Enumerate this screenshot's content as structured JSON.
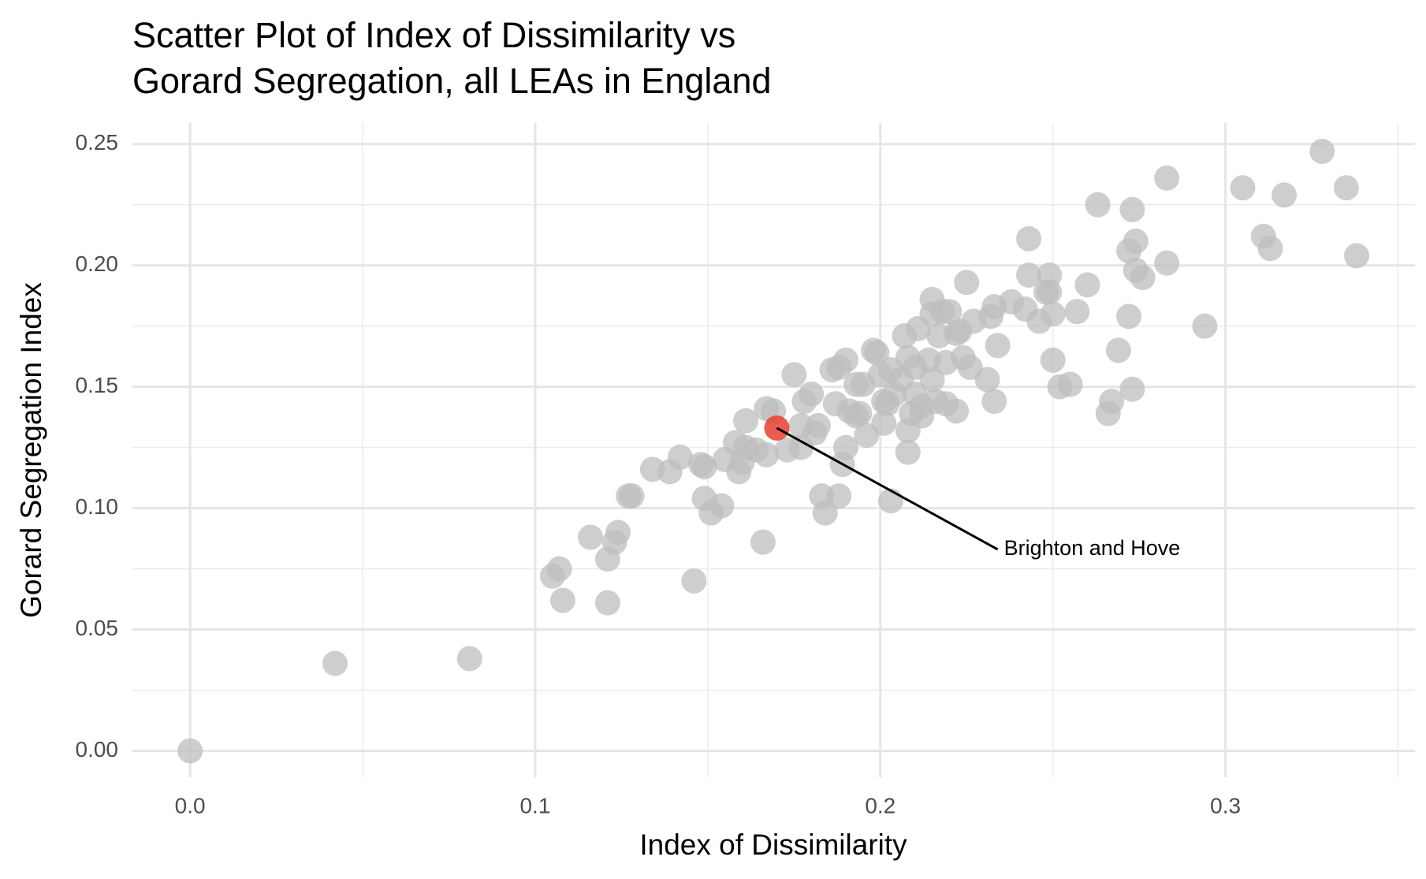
{
  "chart_data": {
    "type": "scatter",
    "title": [
      "Scatter Plot of Index of Dissimilarity vs",
      "Gorard Segregation, all LEAs in England"
    ],
    "x_label": "Index of Dissimilarity",
    "y_label": "Gorard Segregation Index",
    "x": [
      0,
      0.042,
      0.081,
      0.105,
      0.107,
      0.108,
      0.116,
      0.121,
      0.121,
      0.123,
      0.124,
      0.127,
      0.128,
      0.134,
      0.139,
      0.142,
      0.146,
      0.148,
      0.149,
      0.149,
      0.151,
      0.154,
      0.155,
      0.158,
      0.159,
      0.16,
      0.161,
      0.161,
      0.164,
      0.166,
      0.167,
      0.167,
      0.169,
      0.17,
      0.173,
      0.175,
      0.177,
      0.177,
      0.178,
      0.18,
      0.181,
      0.182,
      0.183,
      0.184,
      0.186,
      0.187,
      0.188,
      0.189,
      0.188,
      0.19,
      0.19,
      0.191,
      0.193,
      0.193,
      0.194,
      0.195,
      0.196,
      0.198,
      0.199,
      0.2,
      0.201,
      0.201,
      0.202,
      0.203,
      0.203,
      0.204,
      0.206,
      0.207,
      0.208,
      0.208,
      0.208,
      0.209,
      0.21,
      0.21,
      0.211,
      0.212,
      0.212,
      0.214,
      0.215,
      0.215,
      0.215,
      0.216,
      0.217,
      0.218,
      0.219,
      0.219,
      0.22,
      0.222,
      0.222,
      0.223,
      0.224,
      0.225,
      0.226,
      0.227,
      0.231,
      0.232,
      0.233,
      0.233,
      0.234,
      0.238,
      0.242,
      0.243,
      0.243,
      0.246,
      0.248,
      0.249,
      0.249,
      0.25,
      0.25,
      0.252,
      0.255,
      0.257,
      0.26,
      0.263,
      0.266,
      0.267,
      0.269,
      0.272,
      0.272,
      0.273,
      0.273,
      0.274,
      0.274,
      0.276,
      0.283,
      0.283,
      0.294,
      0.305,
      0.311,
      0.313,
      0.317,
      0.328,
      0.335,
      0.338
    ],
    "y": [
      0,
      0.036,
      0.038,
      0.072,
      0.075,
      0.062,
      0.088,
      0.061,
      0.079,
      0.086,
      0.09,
      0.105,
      0.105,
      0.116,
      0.115,
      0.121,
      0.07,
      0.118,
      0.117,
      0.104,
      0.098,
      0.101,
      0.12,
      0.127,
      0.115,
      0.119,
      0.136,
      0.125,
      0.124,
      0.086,
      0.122,
      0.141,
      0.14,
      0.133,
      0.124,
      0.155,
      0.125,
      0.134,
      0.144,
      0.147,
      0.131,
      0.134,
      0.105,
      0.098,
      0.157,
      0.143,
      0.105,
      0.118,
      0.158,
      0.161,
      0.125,
      0.14,
      0.138,
      0.151,
      0.139,
      0.151,
      0.13,
      0.165,
      0.164,
      0.155,
      0.135,
      0.144,
      0.143,
      0.103,
      0.157,
      0.147,
      0.153,
      0.171,
      0.162,
      0.132,
      0.123,
      0.139,
      0.147,
      0.158,
      0.174,
      0.142,
      0.138,
      0.161,
      0.186,
      0.18,
      0.153,
      0.144,
      0.171,
      0.181,
      0.16,
      0.143,
      0.181,
      0.14,
      0.172,
      0.173,
      0.162,
      0.193,
      0.158,
      0.177,
      0.153,
      0.179,
      0.183,
      0.144,
      0.167,
      0.185,
      0.182,
      0.196,
      0.211,
      0.177,
      0.189,
      0.196,
      0.189,
      0.18,
      0.161,
      0.15,
      0.151,
      0.181,
      0.192,
      0.225,
      0.139,
      0.144,
      0.165,
      0.206,
      0.179,
      0.149,
      0.223,
      0.21,
      0.198,
      0.195,
      0.201,
      0.236,
      0.175,
      0.232,
      0.212,
      0.207,
      0.229,
      0.247,
      0.232,
      0.204
    ],
    "color": "#bdbdbd",
    "highlight_index": 33,
    "highlight_color": "#e8402f",
    "annotation": {
      "text": "Brighton and Hove",
      "x": 0.234,
      "y": 0.083
    },
    "xlim": [
      -0.0167,
      0.3549
    ],
    "ylim": [
      -0.0109,
      0.2587
    ],
    "xticks": [
      {
        "value": 0,
        "label": "0.0"
      },
      0.1,
      0.2,
      0.3
    ],
    "yticks": [
      {
        "value": 0,
        "label": "0.00"
      },
      0.05,
      {
        "value": 0.1,
        "label": "0.10"
      },
      0.15,
      {
        "value": 0.2,
        "label": "0.20"
      },
      0.25
    ],
    "x_minor_grid": [
      0.05,
      0.15,
      0.25,
      0.35
    ],
    "y_minor_grid": [
      0.025,
      0.075,
      0.125,
      0.175,
      0.225
    ],
    "grid": true
  }
}
